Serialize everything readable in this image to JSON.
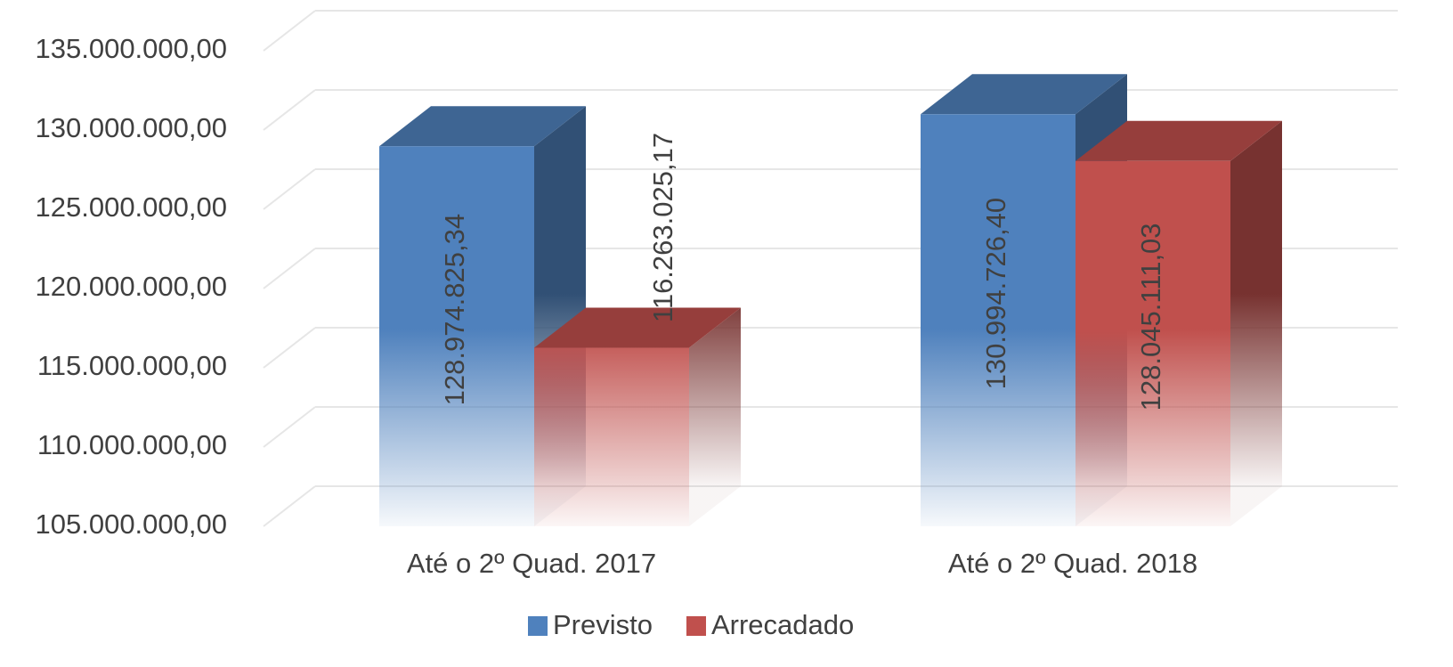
{
  "chart_data": {
    "type": "bar3d",
    "categories": [
      "Até o 2º Quad. 2017",
      "Até o 2º Quad. 2018"
    ],
    "series": [
      {
        "name": "Previsto",
        "color": "#4f81bd",
        "values": [
          128974825.34,
          130994726.4
        ],
        "value_labels": [
          "128.974.825,34",
          "130.994.726,40"
        ]
      },
      {
        "name": "Arrecadado",
        "color": "#c0504d",
        "values": [
          116263025.17,
          128045111.03
        ],
        "value_labels": [
          "116.263.025,17",
          "128.045.111,03"
        ]
      }
    ],
    "ylim": [
      105000000,
      135000000
    ],
    "yticks": [
      {
        "value": 105000000,
        "label": "105.000.000,00"
      },
      {
        "value": 110000000,
        "label": "110.000.000,00"
      },
      {
        "value": 115000000,
        "label": "115.000.000,00"
      },
      {
        "value": 120000000,
        "label": "120.000.000,00"
      },
      {
        "value": 125000000,
        "label": "125.000.000,00"
      },
      {
        "value": 130000000,
        "label": "130.000.000,00"
      },
      {
        "value": 135000000,
        "label": "135.000.000,00"
      }
    ],
    "grid": true,
    "legend": "bottom"
  }
}
